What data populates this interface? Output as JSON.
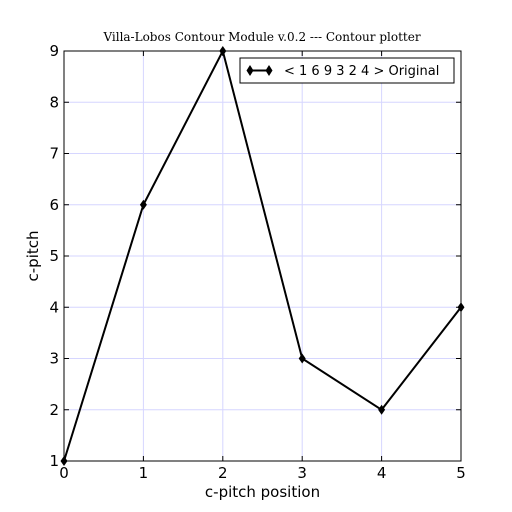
{
  "chart_data": {
    "type": "line",
    "title": "Villa-Lobos Contour Module v.0.2 --- Contour plotter",
    "xlabel": "c-pitch position",
    "ylabel": "c-pitch",
    "xlim": [
      0,
      5
    ],
    "ylim": [
      1,
      9
    ],
    "xticks": [
      "0",
      "1",
      "2",
      "3",
      "4",
      "5"
    ],
    "yticks": [
      "1",
      "2",
      "3",
      "4",
      "5",
      "6",
      "7",
      "8",
      "9"
    ],
    "grid": true,
    "legend_position": "top-right",
    "series": [
      {
        "name": "< 1 6 9 3 2 4 > Original",
        "x": [
          0,
          1,
          2,
          3,
          4,
          5
        ],
        "values": [
          1,
          6,
          9,
          3,
          2,
          4
        ],
        "color": "#000000",
        "marker": "diamond"
      }
    ]
  }
}
